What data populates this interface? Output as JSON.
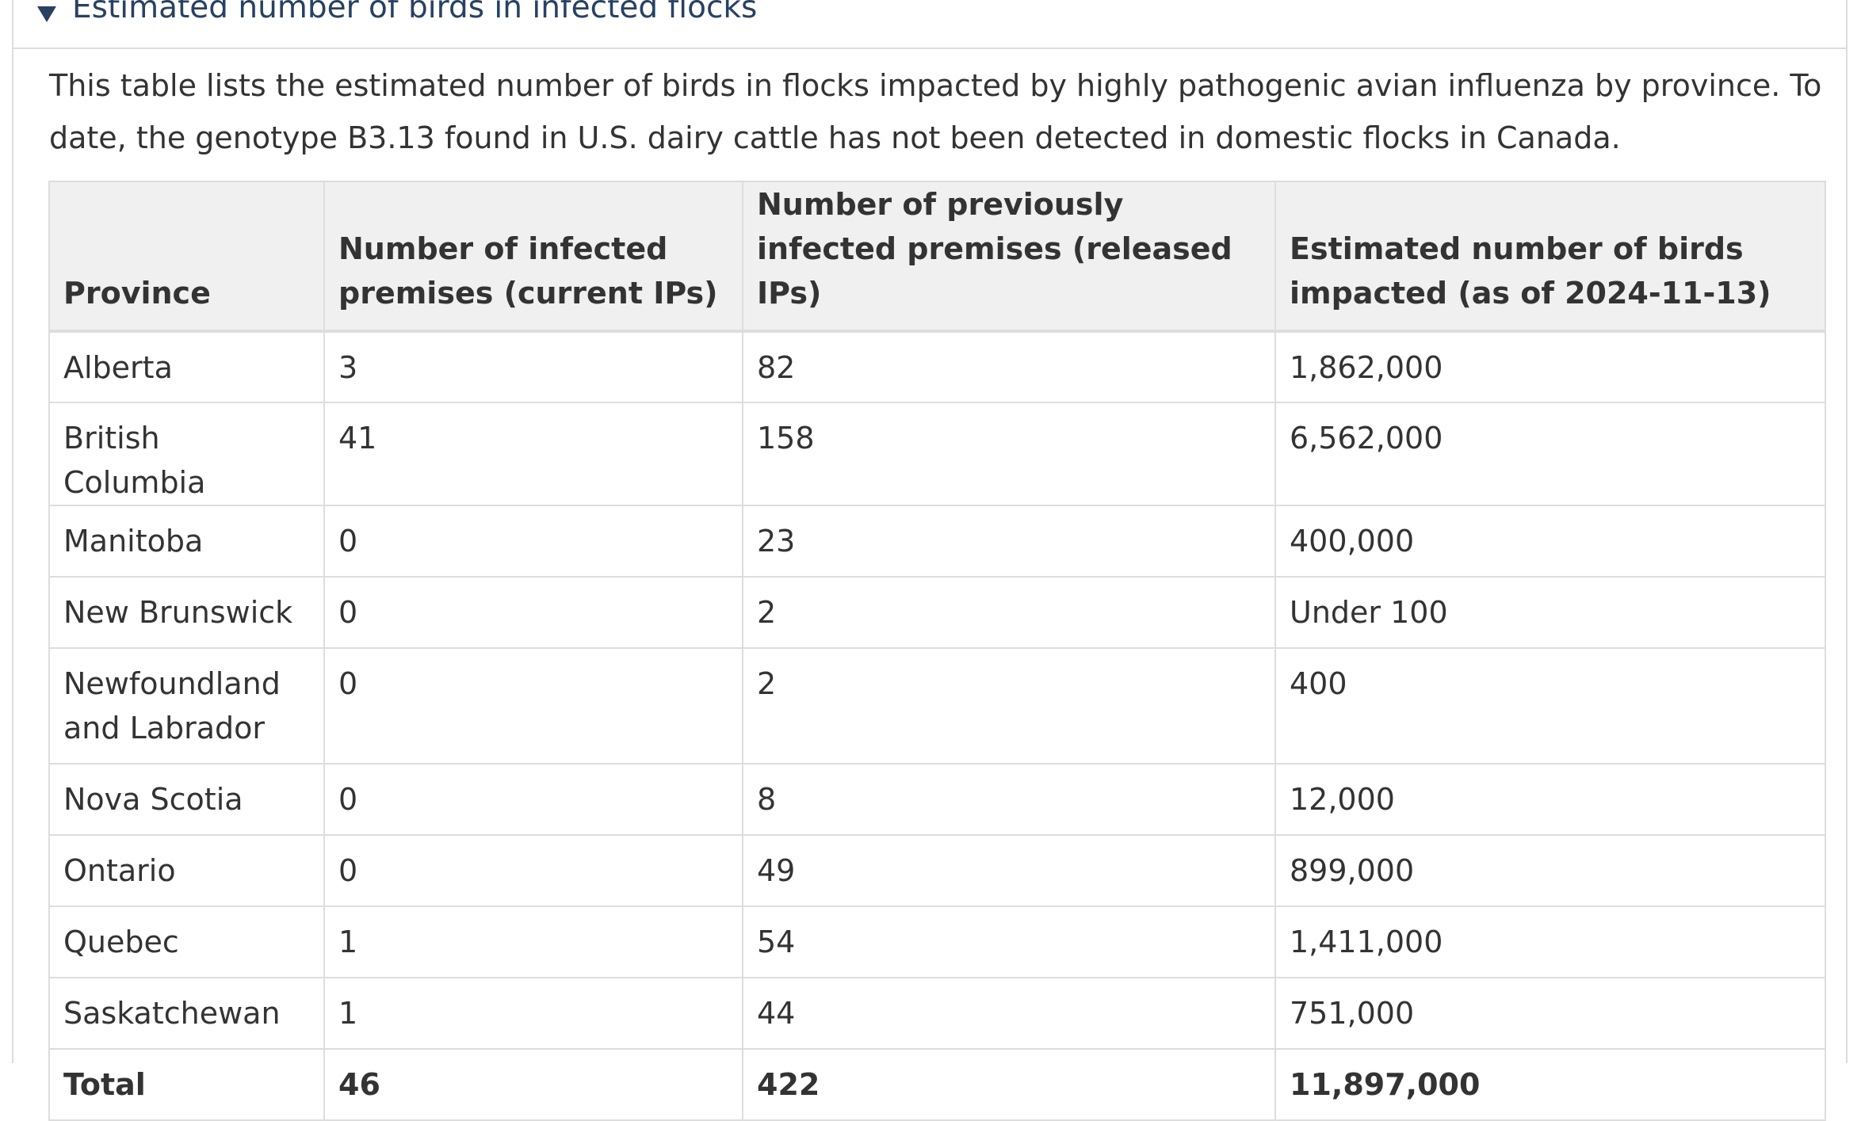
{
  "summary": {
    "label": "Estimated number of birds in infected flocks"
  },
  "intro": "This table lists the estimated number of birds in flocks impacted by highly pathogenic avian influenza by province. To date, the genotype B3.13 found in U.S. dairy cattle has not been detected in domestic flocks in Canada.",
  "table": {
    "headers": [
      "Province",
      "Number of infected premises (current IPs)",
      "Number of previously infected premises (released IPs)",
      "Estimated number of birds impacted (as of 2024-11-13)"
    ],
    "rows": [
      [
        "Alberta",
        "3",
        "82",
        "1,862,000"
      ],
      [
        "British Columbia",
        "41",
        "158",
        "6,562,000"
      ],
      [
        "Manitoba",
        "0",
        "23",
        "400,000"
      ],
      [
        "New Brunswick",
        "0",
        "2",
        "Under 100"
      ],
      [
        "Newfoundland and Labrador",
        "0",
        "2",
        "400"
      ],
      [
        "Nova Scotia",
        "0",
        "8",
        "12,000"
      ],
      [
        "Ontario",
        "0",
        "49",
        "899,000"
      ],
      [
        "Quebec",
        "1",
        "54",
        "1,411,000"
      ],
      [
        "Saskatchewan",
        "1",
        "44",
        "751,000"
      ],
      [
        "Total",
        "46",
        "422",
        "11,897,000"
      ]
    ]
  },
  "colors": {
    "summary_text": "#284162",
    "body_text": "#333333",
    "header_bg": "#f0f0f0",
    "border": "#dddddd"
  }
}
